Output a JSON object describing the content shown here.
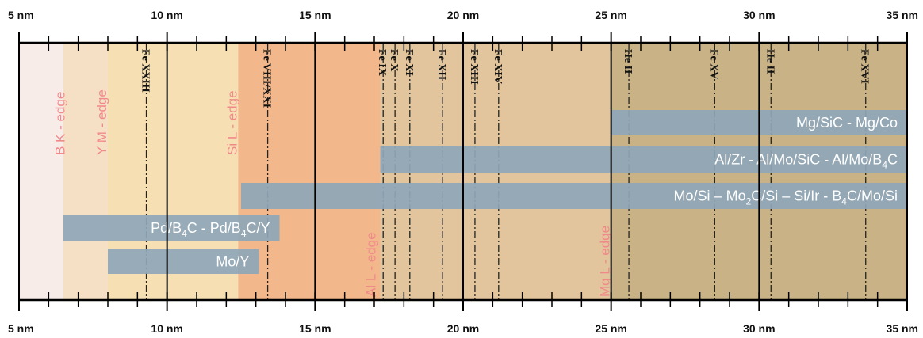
{
  "axis": {
    "unit": "nm",
    "range": [
      5,
      35
    ],
    "major_ticks": [
      {
        "value": 5,
        "label": "5 nm"
      },
      {
        "value": 10,
        "label": "10 nm"
      },
      {
        "value": 15,
        "label": "15 nm"
      },
      {
        "value": 20,
        "label": "20 nm"
      },
      {
        "value": 25,
        "label": "25 nm"
      },
      {
        "value": 30,
        "label": "30 nm"
      },
      {
        "value": 35,
        "label": "35 nm"
      }
    ],
    "minor_step": 1
  },
  "regions": [
    {
      "start": 5.0,
      "end": 6.5,
      "color": "#f8ece9"
    },
    {
      "start": 6.5,
      "end": 8.0,
      "color": "#f5e0c5"
    },
    {
      "start": 8.0,
      "end": 12.4,
      "color": "#f6dfb3"
    },
    {
      "start": 12.4,
      "end": 17.2,
      "color": "#f2b88c"
    },
    {
      "start": 17.2,
      "end": 25.0,
      "color": "#e2c59c"
    },
    {
      "start": 25.0,
      "end": 35.0,
      "color": "#c9b386"
    }
  ],
  "absorption_edges": [
    {
      "label": "B K - edge",
      "x": 6.6,
      "position": "upper"
    },
    {
      "label": "Y M - edge",
      "x": 8.0,
      "position": "upper"
    },
    {
      "label": "Si L - edge",
      "x": 12.4,
      "position": "upper"
    },
    {
      "label": "Al L - edge",
      "x": 17.1,
      "position": "lower"
    },
    {
      "label": "Mg L - edge",
      "x": 25.0,
      "position": "lower"
    }
  ],
  "emission_lines": [
    {
      "label": "Fe XXIII",
      "x": 9.3
    },
    {
      "label": "Fe VIII/XXI",
      "x": 13.4
    },
    {
      "label": "Fe IX",
      "x": 17.3
    },
    {
      "label": "Fe X",
      "x": 17.7
    },
    {
      "label": "Fe XI",
      "x": 18.2
    },
    {
      "label": "Fe XII",
      "x": 19.3
    },
    {
      "label": "Fe XIII",
      "x": 20.4
    },
    {
      "label": "Fe XIV",
      "x": 21.2
    },
    {
      "label": "He II",
      "x": 25.6
    },
    {
      "label": "Fe XV",
      "x": 28.5
    },
    {
      "label": "He II",
      "x": 30.4
    },
    {
      "label": "Fe XVI",
      "x": 33.6
    }
  ],
  "coating_bands": [
    {
      "start": 25.0,
      "end": 35.0,
      "label": "Mg/SiC - Mg/Co",
      "segments": [
        {
          "t": "Mg/SiC - Mg/Co"
        }
      ]
    },
    {
      "start": 17.2,
      "end": 35.0,
      "label": "Al/Zr - Al/Mo/SiC - Al/Mo/B4C",
      "segments": [
        {
          "t": "Al/Zr - Al/Mo/SiC - Al/Mo/B"
        },
        {
          "t": "4",
          "sub": true
        },
        {
          "t": "C"
        }
      ]
    },
    {
      "start": 12.5,
      "end": 35.0,
      "label": "Mo/Si – Mo2C/Si – Si/Ir - B4C/Mo/Si",
      "segments": [
        {
          "t": "Mo/Si – Mo"
        },
        {
          "t": "2",
          "sub": true
        },
        {
          "t": "C/Si – Si/Ir - "
        },
        {
          "t": " B"
        },
        {
          "t": "4",
          "sub": true
        },
        {
          "t": "C/Mo/Si"
        }
      ]
    },
    {
      "start": 6.5,
      "end": 13.8,
      "label": "Pd/B4C - Pd/B4C/Y",
      "segments": [
        {
          "t": "Pd/B"
        },
        {
          "t": "4",
          "sub": true
        },
        {
          "t": "C - Pd/B"
        },
        {
          "t": "4",
          "sub": true
        },
        {
          "t": "C/Y"
        }
      ]
    },
    {
      "start": 8.0,
      "end": 13.1,
      "label": "Mo/Y",
      "segments": [
        {
          "t": "Mo/Y"
        }
      ]
    }
  ],
  "colors": {
    "band": "#8fa6b8",
    "axis": "#000000",
    "edge_text": "#f08a8a"
  }
}
